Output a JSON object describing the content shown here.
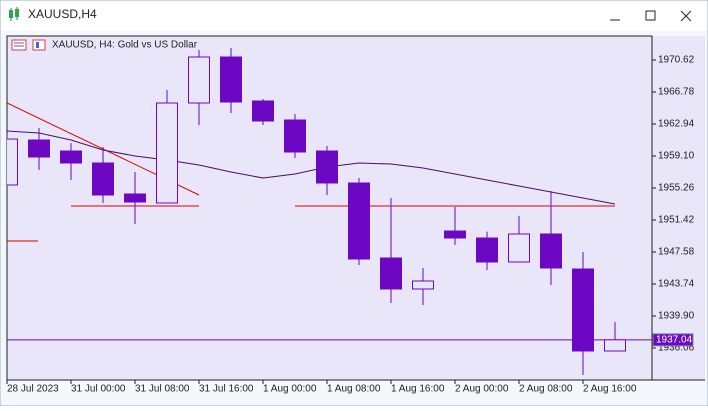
{
  "window": {
    "title": "XAUUSD,H4"
  },
  "chart_data": {
    "type": "candlestick",
    "title": "XAUUSD, H4:  Gold vs US Dollar",
    "x": [
      "28 Jul 2023",
      null,
      "31 Jul 00:00",
      null,
      "31 Jul 08:00",
      null,
      "31 Jul 16:00",
      null,
      "1 Aug 00:00",
      null,
      "1 Aug 08:00",
      null,
      "1 Aug 16:00",
      null,
      "2 Aug 00:00",
      null,
      "2 Aug 08:00",
      null,
      "2 Aug 16:00",
      null
    ],
    "open": [
      1955.62,
      1961.02,
      1959.7,
      1958.26,
      1954.54,
      1953.46,
      1965.46,
      1970.98,
      1965.7,
      1963.42,
      1959.7,
      1955.86,
      1946.86,
      1943.14,
      1950.1,
      1949.26,
      1946.38,
      1949.74,
      1945.54,
      1935.7
    ],
    "high": [
      1961.6,
      1962.46,
      1960.66,
      1960.18,
      1957.18,
      1967.02,
      1971.82,
      1972.06,
      1965.94,
      1964.14,
      1960.3,
      1956.46,
      1954.06,
      1945.66,
      1952.98,
      1950.02,
      1951.9,
      1954.9,
      1947.58,
      1939.18
    ],
    "low": [
      1955.62,
      1957.42,
      1956.22,
      1953.46,
      1950.94,
      1953.46,
      1962.82,
      1964.26,
      1962.82,
      1958.86,
      1954.42,
      1946.02,
      1941.46,
      1941.22,
      1948.42,
      1945.42,
      1946.38,
      1943.62,
      1932.82,
      1935.7
    ],
    "close": [
      1961.14,
      1958.98,
      1958.26,
      1954.42,
      1953.58,
      1965.46,
      1970.98,
      1965.58,
      1963.3,
      1959.58,
      1955.86,
      1946.74,
      1943.14,
      1944.1,
      1949.26,
      1946.38,
      1949.74,
      1945.66,
      1935.7,
      1937.04
    ],
    "color": "#6c08c4",
    "ma": {
      "color": "#4a1060",
      "values": [
        1962.1,
        1961.86,
        1961.02,
        1959.82,
        1959.1,
        1958.62,
        1958.02,
        1957.18,
        1956.46,
        1956.94,
        1957.78,
        1958.26,
        1958.14,
        1957.66,
        1956.94,
        1956.22,
        1955.5,
        1954.78,
        1954.06,
        1953.34
      ]
    },
    "last_price": 1937.04,
    "ylim": [
      1932.22,
      1973.5
    ],
    "yticks": [
      1970.62,
      1966.78,
      1962.94,
      {
        "value": 1959.1,
        "label": "1959.10"
      },
      1955.26,
      1951.42,
      1947.58,
      1943.74,
      {
        "value": 1939.9,
        "label": "1939.90"
      },
      1936.06
    ]
  }
}
